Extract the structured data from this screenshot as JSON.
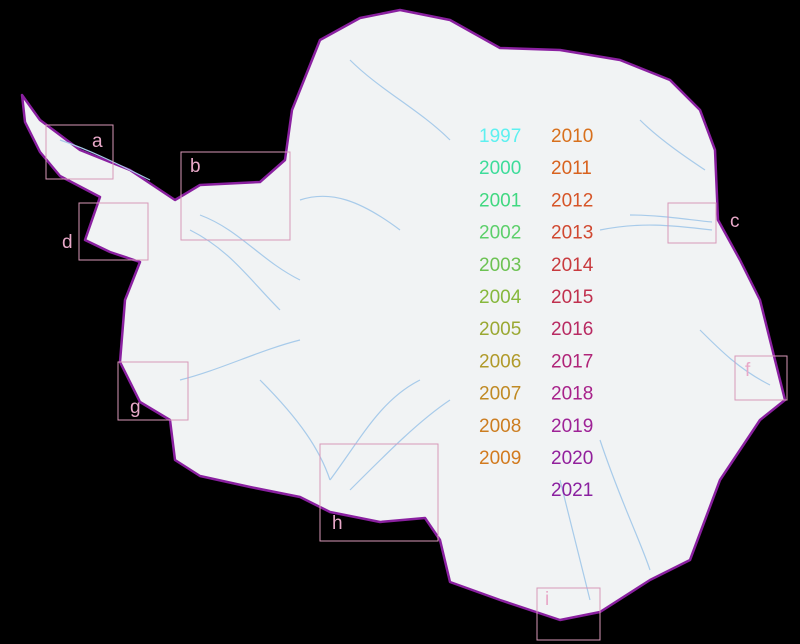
{
  "legend": {
    "items": [
      {
        "label": "1997",
        "color": "#5ef0f0"
      },
      {
        "label": "2000",
        "color": "#3ddc9a"
      },
      {
        "label": "2001",
        "color": "#40d880"
      },
      {
        "label": "2002",
        "color": "#5ccf6a"
      },
      {
        "label": "2003",
        "color": "#6cc252"
      },
      {
        "label": "2004",
        "color": "#86b83c"
      },
      {
        "label": "2005",
        "color": "#9aa832"
      },
      {
        "label": "2006",
        "color": "#b09a2a"
      },
      {
        "label": "2007",
        "color": "#c08a24"
      },
      {
        "label": "2008",
        "color": "#cc7d20"
      },
      {
        "label": "2009",
        "color": "#d27a1e"
      },
      {
        "label": "2010",
        "color": "#d8701c"
      },
      {
        "label": "2011",
        "color": "#d8621e"
      },
      {
        "label": "2012",
        "color": "#d65528"
      },
      {
        "label": "2013",
        "color": "#d04830"
      },
      {
        "label": "2014",
        "color": "#c83a3e"
      },
      {
        "label": "2015",
        "color": "#c0304e"
      },
      {
        "label": "2016",
        "color": "#b82a62"
      },
      {
        "label": "2017",
        "color": "#b02478"
      },
      {
        "label": "2018",
        "color": "#a8228a"
      },
      {
        "label": "2019",
        "color": "#9e2296"
      },
      {
        "label": "2020",
        "color": "#92209c"
      },
      {
        "label": "2021",
        "color": "#8a20a0"
      }
    ]
  },
  "regions": [
    {
      "label": "a"
    },
    {
      "label": "b"
    },
    {
      "label": "c"
    },
    {
      "label": "d"
    },
    {
      "label": "f"
    },
    {
      "label": "g"
    },
    {
      "label": "h"
    },
    {
      "label": "i"
    }
  ]
}
